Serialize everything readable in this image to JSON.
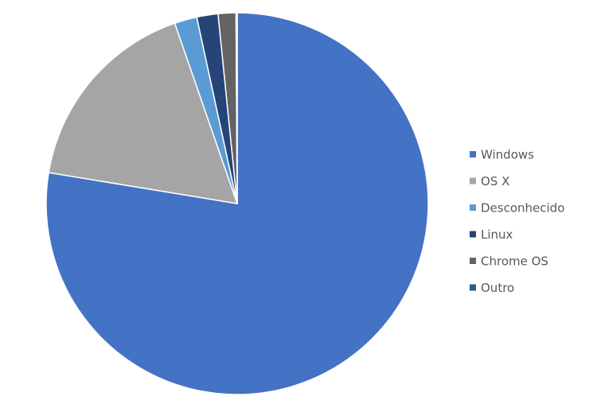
{
  "chart_data": {
    "type": "pie",
    "categories": [
      "Windows",
      "OS X",
      "Desconhecido",
      "Linux",
      "Chrome OS",
      "Outro"
    ],
    "values": [
      77.6,
      17.1,
      1.9,
      1.8,
      1.5,
      0.1
    ],
    "colors": [
      "#4472c4",
      "#a5a5a5",
      "#5b9bd5",
      "#264478",
      "#636363",
      "#255e91"
    ],
    "legend": "right"
  }
}
